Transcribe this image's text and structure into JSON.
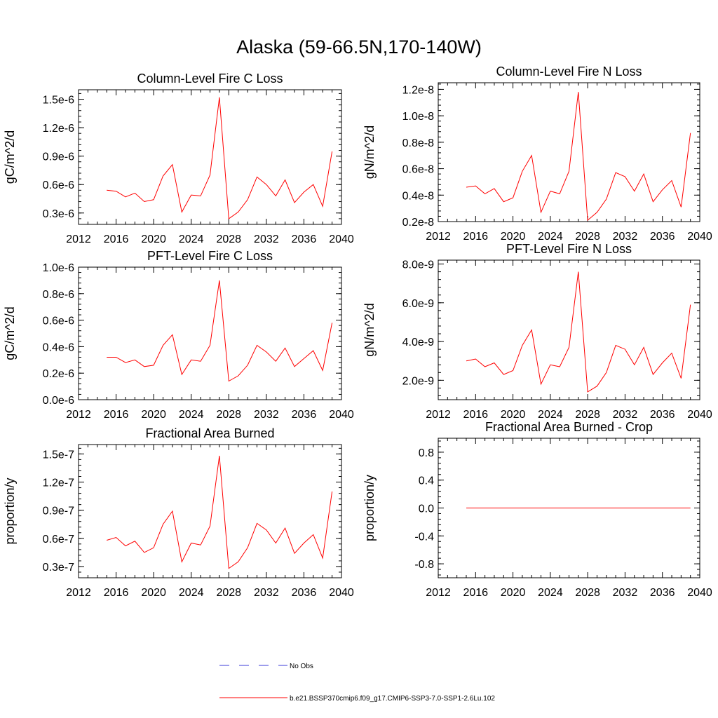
{
  "page": {
    "title": "Alaska (59-66.5N,170-140W)"
  },
  "legend": {
    "items": [
      {
        "label": "No Obs",
        "color": "#3b3bd8",
        "style": "dashed"
      },
      {
        "label": "b.e21.BSSP370cmip6.f09_g17.CMIP6-SSP3-7.0-SSP1-2.6Lu.102",
        "color": "#ff0000",
        "style": "solid"
      }
    ]
  },
  "chart_data": [
    {
      "type": "line",
      "title": "Column-Level Fire C Loss",
      "xlabel": "",
      "ylabel": "gC/m^2/d",
      "xlim": [
        2012,
        2040
      ],
      "ylim": [
        1.8e-07,
        1.6e-06
      ],
      "xticks": [
        2012,
        2016,
        2020,
        2024,
        2028,
        2032,
        2036,
        2040
      ],
      "yticks": [
        3e-07,
        6e-07,
        9e-07,
        1.2e-06,
        1.5e-06
      ],
      "yticklabels": [
        "0.3e-6",
        "0.6e-6",
        "0.9e-6",
        "1.2e-6",
        "1.5e-6"
      ],
      "x": [
        2015,
        2016,
        2017,
        2018,
        2019,
        2020,
        2021,
        2022,
        2023,
        2024,
        2025,
        2026,
        2027,
        2028,
        2029,
        2030,
        2031,
        2032,
        2033,
        2034,
        2035,
        2036,
        2037,
        2038,
        2039
      ],
      "series": [
        {
          "color": "#ff0000",
          "values": [
            5.4e-07,
            5.3e-07,
            4.7e-07,
            5.1e-07,
            4.2e-07,
            4.4e-07,
            6.9e-07,
            8.1e-07,
            3.1e-07,
            4.9e-07,
            4.8e-07,
            7e-07,
            1.52e-06,
            2.4e-07,
            3.1e-07,
            4.4e-07,
            6.8e-07,
            6e-07,
            4.8e-07,
            6.5e-07,
            4.1e-07,
            5.2e-07,
            6e-07,
            3.7e-07,
            9.5e-07
          ]
        }
      ]
    },
    {
      "type": "line",
      "title": "Column-Level Fire N Loss",
      "xlabel": "",
      "ylabel": "gN/m^2/d",
      "xlim": [
        2012,
        2040
      ],
      "ylim": [
        2e-09,
        1.25e-08
      ],
      "xticks": [
        2012,
        2016,
        2020,
        2024,
        2028,
        2032,
        2036,
        2040
      ],
      "yticks": [
        2e-09,
        4e-09,
        6e-09,
        8e-09,
        1e-08,
        1.2e-08
      ],
      "yticklabels": [
        "0.2e-8",
        "0.4e-8",
        "0.6e-8",
        "0.8e-8",
        "1.0e-8",
        "1.2e-8"
      ],
      "x": [
        2015,
        2016,
        2017,
        2018,
        2019,
        2020,
        2021,
        2022,
        2023,
        2024,
        2025,
        2026,
        2027,
        2028,
        2029,
        2030,
        2031,
        2032,
        2033,
        2034,
        2035,
        2036,
        2037,
        2038,
        2039
      ],
      "series": [
        {
          "color": "#ff0000",
          "values": [
            4.6e-09,
            4.7e-09,
            4.1e-09,
            4.5e-09,
            3.5e-09,
            3.8e-09,
            5.8e-09,
            7e-09,
            2.7e-09,
            4.3e-09,
            4.1e-09,
            5.8e-09,
            1.18e-08,
            2.1e-09,
            2.7e-09,
            3.7e-09,
            5.7e-09,
            5.4e-09,
            4.3e-09,
            5.6e-09,
            3.5e-09,
            4.4e-09,
            5.1e-09,
            3.1e-09,
            8.7e-09
          ]
        }
      ]
    },
    {
      "type": "line",
      "title": "PFT-Level Fire C Loss",
      "xlabel": "",
      "ylabel": "gC/m^2/d",
      "xlim": [
        2012,
        2040
      ],
      "ylim": [
        0.0,
        1e-06
      ],
      "xticks": [
        2012,
        2016,
        2020,
        2024,
        2028,
        2032,
        2036,
        2040
      ],
      "yticks": [
        0.0,
        2e-07,
        4e-07,
        6e-07,
        8e-07,
        1e-06
      ],
      "yticklabels": [
        "0.0e-6",
        "0.2e-6",
        "0.4e-6",
        "0.6e-6",
        "0.8e-6",
        "1.0e-6"
      ],
      "x": [
        2015,
        2016,
        2017,
        2018,
        2019,
        2020,
        2021,
        2022,
        2023,
        2024,
        2025,
        2026,
        2027,
        2028,
        2029,
        2030,
        2031,
        2032,
        2033,
        2034,
        2035,
        2036,
        2037,
        2038,
        2039
      ],
      "series": [
        {
          "color": "#ff0000",
          "values": [
            3.2e-07,
            3.2e-07,
            2.8e-07,
            3e-07,
            2.5e-07,
            2.6e-07,
            4.1e-07,
            4.9e-07,
            1.9e-07,
            3e-07,
            2.9e-07,
            4.1e-07,
            9e-07,
            1.4e-07,
            1.8e-07,
            2.6e-07,
            4.1e-07,
            3.6e-07,
            2.9e-07,
            3.9e-07,
            2.5e-07,
            3.1e-07,
            3.7e-07,
            2.2e-07,
            5.8e-07
          ]
        }
      ]
    },
    {
      "type": "line",
      "title": "PFT-Level Fire N Loss",
      "xlabel": "",
      "ylabel": "gN/m^2/d",
      "xlim": [
        2012,
        2040
      ],
      "ylim": [
        1e-09,
        8.2e-09
      ],
      "xticks": [
        2012,
        2016,
        2020,
        2024,
        2028,
        2032,
        2036,
        2040
      ],
      "yticks": [
        2e-09,
        4e-09,
        6e-09,
        8e-09
      ],
      "yticklabels": [
        "2.0e-9",
        "4.0e-9",
        "6.0e-9",
        "8.0e-9"
      ],
      "x": [
        2015,
        2016,
        2017,
        2018,
        2019,
        2020,
        2021,
        2022,
        2023,
        2024,
        2025,
        2026,
        2027,
        2028,
        2029,
        2030,
        2031,
        2032,
        2033,
        2034,
        2035,
        2036,
        2037,
        2038,
        2039
      ],
      "series": [
        {
          "color": "#ff0000",
          "values": [
            3e-09,
            3.1e-09,
            2.7e-09,
            2.9e-09,
            2.3e-09,
            2.5e-09,
            3.8e-09,
            4.6e-09,
            1.8e-09,
            2.8e-09,
            2.7e-09,
            3.7e-09,
            7.6e-09,
            1.4e-09,
            1.7e-09,
            2.4e-09,
            3.8e-09,
            3.6e-09,
            2.8e-09,
            3.7e-09,
            2.3e-09,
            2.9e-09,
            3.4e-09,
            2.1e-09,
            5.9e-09
          ]
        }
      ]
    },
    {
      "type": "line",
      "title": "Fractional Area Burned",
      "xlabel": "",
      "ylabel": "proportion/y",
      "xlim": [
        2012,
        2040
      ],
      "ylim": [
        1.8e-08,
        1.6e-07
      ],
      "xticks": [
        2012,
        2016,
        2020,
        2024,
        2028,
        2032,
        2036,
        2040
      ],
      "yticks": [
        3e-08,
        6e-08,
        9e-08,
        1.2e-07,
        1.5e-07
      ],
      "yticklabels": [
        "0.3e-7",
        "0.6e-7",
        "0.9e-7",
        "1.2e-7",
        "1.5e-7"
      ],
      "x": [
        2015,
        2016,
        2017,
        2018,
        2019,
        2020,
        2021,
        2022,
        2023,
        2024,
        2025,
        2026,
        2027,
        2028,
        2029,
        2030,
        2031,
        2032,
        2033,
        2034,
        2035,
        2036,
        2037,
        2038,
        2039
      ],
      "series": [
        {
          "color": "#ff0000",
          "values": [
            5.8e-08,
            6.1e-08,
            5.2e-08,
            5.7e-08,
            4.5e-08,
            5e-08,
            7.5e-08,
            8.9e-08,
            3.5e-08,
            5.5e-08,
            5.3e-08,
            7.3e-08,
            1.48e-07,
            2.8e-08,
            3.5e-08,
            5e-08,
            7.6e-08,
            6.9e-08,
            5.5e-08,
            7.1e-08,
            4.4e-08,
            5.5e-08,
            6.4e-08,
            3.9e-08,
            1.1e-07
          ]
        }
      ]
    },
    {
      "type": "line",
      "title": "Fractional Area Burned - Crop",
      "xlabel": "",
      "ylabel": "proportion/y",
      "xlim": [
        2012,
        2040
      ],
      "ylim": [
        -1.0,
        1.0
      ],
      "xticks": [
        2012,
        2016,
        2020,
        2024,
        2028,
        2032,
        2036,
        2040
      ],
      "yticks": [
        -0.8,
        -0.4,
        0.0,
        0.4,
        0.8
      ],
      "yticklabels": [
        "-0.8",
        "-0.4",
        "0.0",
        "0.4",
        "0.8"
      ],
      "x": [
        2015,
        2016,
        2017,
        2018,
        2019,
        2020,
        2021,
        2022,
        2023,
        2024,
        2025,
        2026,
        2027,
        2028,
        2029,
        2030,
        2031,
        2032,
        2033,
        2034,
        2035,
        2036,
        2037,
        2038,
        2039
      ],
      "series": [
        {
          "color": "#ff0000",
          "values": [
            0,
            0,
            0,
            0,
            0,
            0,
            0,
            0,
            0,
            0,
            0,
            0,
            0,
            0,
            0,
            0,
            0,
            0,
            0,
            0,
            0,
            0,
            0,
            0,
            0
          ]
        }
      ]
    }
  ]
}
